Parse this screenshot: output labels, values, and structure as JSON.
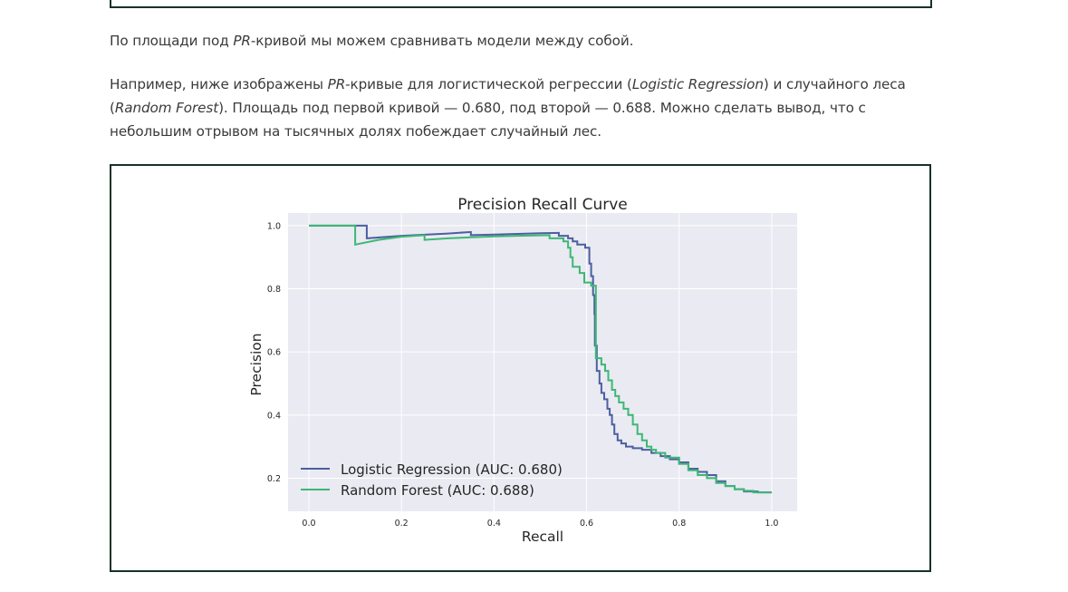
{
  "article": {
    "p1": {
      "a": "По площади под ",
      "b": "PR",
      "c": "-кривой мы можем сравнивать модели между собой."
    },
    "p2": {
      "a": "Например, ниже изображены ",
      "b": "PR",
      "c": "-кривые для логистической регрессии (",
      "d": "Logistic Regression",
      "e": ") и случайного леса (",
      "f": "Random Forest",
      "g": "). Площадь под первой кривой — 0.680, под второй — 0.688. Можно сделать вывод, что с небольшим отрывом на тысячных долях побеждает случайный лес."
    }
  },
  "chart_data": {
    "type": "line",
    "title": "Precision Recall Curve",
    "xlabel": "Recall",
    "ylabel": "Precision",
    "xlim": [
      -0.045,
      1.055
    ],
    "ylim": [
      0.095,
      1.04
    ],
    "xticks": [
      "0.0",
      "0.2",
      "0.4",
      "0.6",
      "0.8",
      "1.0"
    ],
    "yticks": [
      "0.2",
      "0.4",
      "0.6",
      "0.8",
      "1.0"
    ],
    "grid": true,
    "legend_position": "lower-left",
    "series": [
      {
        "name": "Logistic Regression (AUC: 0.680)",
        "color": "#4c5fa0",
        "points": [
          [
            0.0,
            1.0
          ],
          [
            0.125,
            1.0
          ],
          [
            0.125,
            0.96
          ],
          [
            0.2,
            0.968
          ],
          [
            0.3,
            0.975
          ],
          [
            0.35,
            0.98
          ],
          [
            0.35,
            0.97
          ],
          [
            0.4,
            0.972
          ],
          [
            0.45,
            0.974
          ],
          [
            0.5,
            0.976
          ],
          [
            0.54,
            0.977
          ],
          [
            0.54,
            0.968
          ],
          [
            0.56,
            0.968
          ],
          [
            0.56,
            0.96
          ],
          [
            0.57,
            0.96
          ],
          [
            0.57,
            0.95
          ],
          [
            0.58,
            0.95
          ],
          [
            0.58,
            0.94
          ],
          [
            0.597,
            0.94
          ],
          [
            0.597,
            0.93
          ],
          [
            0.606,
            0.93
          ],
          [
            0.606,
            0.88
          ],
          [
            0.61,
            0.88
          ],
          [
            0.61,
            0.84
          ],
          [
            0.614,
            0.84
          ],
          [
            0.614,
            0.78
          ],
          [
            0.617,
            0.78
          ],
          [
            0.617,
            0.72
          ],
          [
            0.618,
            0.72
          ],
          [
            0.618,
            0.62
          ],
          [
            0.622,
            0.62
          ],
          [
            0.622,
            0.54
          ],
          [
            0.628,
            0.54
          ],
          [
            0.628,
            0.5
          ],
          [
            0.632,
            0.5
          ],
          [
            0.632,
            0.47
          ],
          [
            0.638,
            0.47
          ],
          [
            0.638,
            0.45
          ],
          [
            0.645,
            0.45
          ],
          [
            0.645,
            0.42
          ],
          [
            0.65,
            0.42
          ],
          [
            0.65,
            0.4
          ],
          [
            0.655,
            0.4
          ],
          [
            0.655,
            0.37
          ],
          [
            0.66,
            0.37
          ],
          [
            0.66,
            0.34
          ],
          [
            0.667,
            0.34
          ],
          [
            0.667,
            0.32
          ],
          [
            0.675,
            0.32
          ],
          [
            0.675,
            0.31
          ],
          [
            0.685,
            0.31
          ],
          [
            0.685,
            0.3
          ],
          [
            0.7,
            0.3
          ],
          [
            0.7,
            0.295
          ],
          [
            0.72,
            0.295
          ],
          [
            0.72,
            0.29
          ],
          [
            0.74,
            0.29
          ],
          [
            0.74,
            0.28
          ],
          [
            0.76,
            0.28
          ],
          [
            0.76,
            0.27
          ],
          [
            0.78,
            0.27
          ],
          [
            0.78,
            0.26
          ],
          [
            0.8,
            0.26
          ],
          [
            0.8,
            0.25
          ],
          [
            0.82,
            0.25
          ],
          [
            0.82,
            0.23
          ],
          [
            0.84,
            0.23
          ],
          [
            0.84,
            0.22
          ],
          [
            0.86,
            0.22
          ],
          [
            0.86,
            0.21
          ],
          [
            0.88,
            0.21
          ],
          [
            0.88,
            0.19
          ],
          [
            0.9,
            0.19
          ],
          [
            0.9,
            0.175
          ],
          [
            0.92,
            0.175
          ],
          [
            0.92,
            0.165
          ],
          [
            0.94,
            0.165
          ],
          [
            0.94,
            0.158
          ],
          [
            0.97,
            0.158
          ],
          [
            0.97,
            0.155
          ],
          [
            1.0,
            0.155
          ]
        ]
      },
      {
        "name": "Random Forest (AUC: 0.688)",
        "color": "#3cb875",
        "points": [
          [
            0.0,
            1.0
          ],
          [
            0.1,
            1.0
          ],
          [
            0.1,
            0.94
          ],
          [
            0.15,
            0.955
          ],
          [
            0.2,
            0.965
          ],
          [
            0.25,
            0.97
          ],
          [
            0.25,
            0.955
          ],
          [
            0.3,
            0.96
          ],
          [
            0.35,
            0.963
          ],
          [
            0.4,
            0.966
          ],
          [
            0.45,
            0.968
          ],
          [
            0.52,
            0.97
          ],
          [
            0.52,
            0.96
          ],
          [
            0.55,
            0.96
          ],
          [
            0.55,
            0.95
          ],
          [
            0.56,
            0.95
          ],
          [
            0.56,
            0.93
          ],
          [
            0.565,
            0.93
          ],
          [
            0.565,
            0.9
          ],
          [
            0.57,
            0.9
          ],
          [
            0.57,
            0.87
          ],
          [
            0.585,
            0.87
          ],
          [
            0.585,
            0.85
          ],
          [
            0.595,
            0.85
          ],
          [
            0.595,
            0.82
          ],
          [
            0.61,
            0.82
          ],
          [
            0.61,
            0.81
          ],
          [
            0.62,
            0.81
          ],
          [
            0.62,
            0.58
          ],
          [
            0.632,
            0.58
          ],
          [
            0.632,
            0.56
          ],
          [
            0.64,
            0.56
          ],
          [
            0.64,
            0.54
          ],
          [
            0.647,
            0.54
          ],
          [
            0.647,
            0.51
          ],
          [
            0.655,
            0.51
          ],
          [
            0.655,
            0.48
          ],
          [
            0.662,
            0.48
          ],
          [
            0.662,
            0.46
          ],
          [
            0.67,
            0.46
          ],
          [
            0.67,
            0.44
          ],
          [
            0.68,
            0.44
          ],
          [
            0.68,
            0.42
          ],
          [
            0.69,
            0.42
          ],
          [
            0.69,
            0.4
          ],
          [
            0.7,
            0.4
          ],
          [
            0.7,
            0.37
          ],
          [
            0.71,
            0.37
          ],
          [
            0.71,
            0.34
          ],
          [
            0.72,
            0.34
          ],
          [
            0.72,
            0.32
          ],
          [
            0.73,
            0.32
          ],
          [
            0.73,
            0.3
          ],
          [
            0.74,
            0.3
          ],
          [
            0.74,
            0.29
          ],
          [
            0.75,
            0.29
          ],
          [
            0.75,
            0.28
          ],
          [
            0.77,
            0.28
          ],
          [
            0.77,
            0.265
          ],
          [
            0.8,
            0.265
          ],
          [
            0.8,
            0.245
          ],
          [
            0.82,
            0.245
          ],
          [
            0.82,
            0.225
          ],
          [
            0.84,
            0.225
          ],
          [
            0.84,
            0.21
          ],
          [
            0.86,
            0.21
          ],
          [
            0.86,
            0.2
          ],
          [
            0.88,
            0.2
          ],
          [
            0.88,
            0.185
          ],
          [
            0.9,
            0.185
          ],
          [
            0.9,
            0.175
          ],
          [
            0.92,
            0.175
          ],
          [
            0.92,
            0.165
          ],
          [
            0.94,
            0.165
          ],
          [
            0.94,
            0.16
          ],
          [
            0.96,
            0.16
          ],
          [
            0.96,
            0.155
          ],
          [
            1.0,
            0.155
          ]
        ]
      }
    ]
  }
}
